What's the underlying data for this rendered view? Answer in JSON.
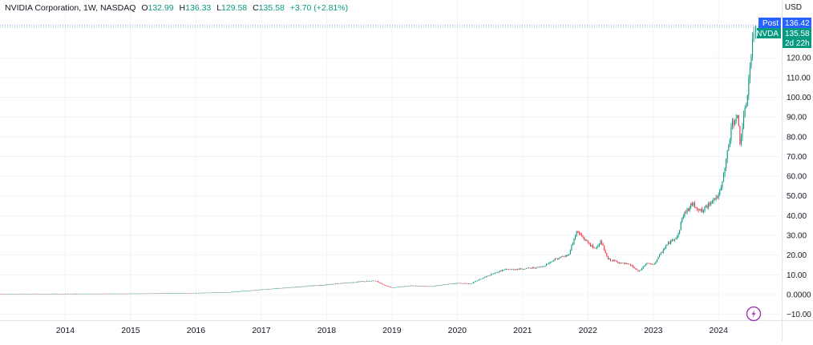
{
  "header": {
    "symbol": "NVIDIA Corporation, 1W, NASDAQ",
    "open_label": "O",
    "open": "132.99",
    "high_label": "H",
    "high": "136.33",
    "low_label": "L",
    "low": "129.58",
    "close_label": "C",
    "close": "135.58",
    "change": "+3.70 (+2.81%)"
  },
  "currency": "USD",
  "price_tags": {
    "post_label": "Post",
    "post_value": "136.42",
    "symbol_label": "NVDA",
    "last_value": "135.58",
    "countdown": "2d 22h"
  },
  "colors": {
    "up": "#089981",
    "down": "#f23645",
    "post": "#2962ff",
    "grid": "#f0f3fa"
  },
  "icons": {
    "flash": "flash-icon"
  },
  "chart_data": {
    "type": "candlestick",
    "series_name": "",
    "x_axis": {
      "labels": [
        "2014",
        "2015",
        "2016",
        "2017",
        "2018",
        "2019",
        "2020",
        "2021",
        "2022",
        "2023",
        "2024"
      ]
    },
    "y_axis": {
      "min": -13,
      "max": 142,
      "ticks": [
        -10,
        0,
        10,
        20,
        30,
        40,
        50,
        60,
        70,
        80,
        90,
        100,
        110,
        120
      ],
      "tick_labels": [
        "−10.00",
        "0.0000",
        "10.00",
        "20.00",
        "30.00",
        "40.00",
        "50.00",
        "60.00",
        "70.00",
        "80.00",
        "90.00",
        "100.00",
        "110.00",
        "120.00"
      ]
    },
    "x_range": [
      2013.0,
      2024.93
    ],
    "anchors": [
      [
        2013.0,
        0.4
      ],
      [
        2014.0,
        0.4
      ],
      [
        2015.0,
        0.5
      ],
      [
        2016.0,
        0.8
      ],
      [
        2016.5,
        1.2
      ],
      [
        2017.0,
        2.5
      ],
      [
        2017.5,
        3.8
      ],
      [
        2018.0,
        5.0
      ],
      [
        2018.5,
        6.5
      ],
      [
        2018.75,
        7.0
      ],
      [
        2018.9,
        4.5
      ],
      [
        2019.0,
        3.5
      ],
      [
        2019.3,
        4.5
      ],
      [
        2019.6,
        4.2
      ],
      [
        2020.0,
        5.8
      ],
      [
        2020.2,
        5.5
      ],
      [
        2020.4,
        8.5
      ],
      [
        2020.7,
        12.5
      ],
      [
        2021.0,
        13.0
      ],
      [
        2021.3,
        14.0
      ],
      [
        2021.5,
        18.0
      ],
      [
        2021.7,
        20.0
      ],
      [
        2021.83,
        32.0
      ],
      [
        2021.95,
        28.0
      ],
      [
        2022.1,
        23.0
      ],
      [
        2022.2,
        27.0
      ],
      [
        2022.3,
        18.0
      ],
      [
        2022.5,
        16.0
      ],
      [
        2022.65,
        15.0
      ],
      [
        2022.78,
        11.5
      ],
      [
        2022.9,
        16.0
      ],
      [
        2023.0,
        15.0
      ],
      [
        2023.2,
        25.0
      ],
      [
        2023.38,
        30.0
      ],
      [
        2023.45,
        40.0
      ],
      [
        2023.6,
        46.0
      ],
      [
        2023.75,
        42.0
      ],
      [
        2023.9,
        48.0
      ],
      [
        2024.0,
        50.0
      ],
      [
        2024.05,
        55.0
      ],
      [
        2024.15,
        75.0
      ],
      [
        2024.2,
        85.0
      ],
      [
        2024.28,
        92.0
      ],
      [
        2024.33,
        77.0
      ],
      [
        2024.38,
        88.0
      ],
      [
        2024.42,
        95.0
      ],
      [
        2024.48,
        115.0
      ],
      [
        2024.55,
        135.58
      ]
    ],
    "last": {
      "open": 132.99,
      "high": 136.33,
      "low": 129.58,
      "close": 135.58
    },
    "post_market": 136.42
  }
}
